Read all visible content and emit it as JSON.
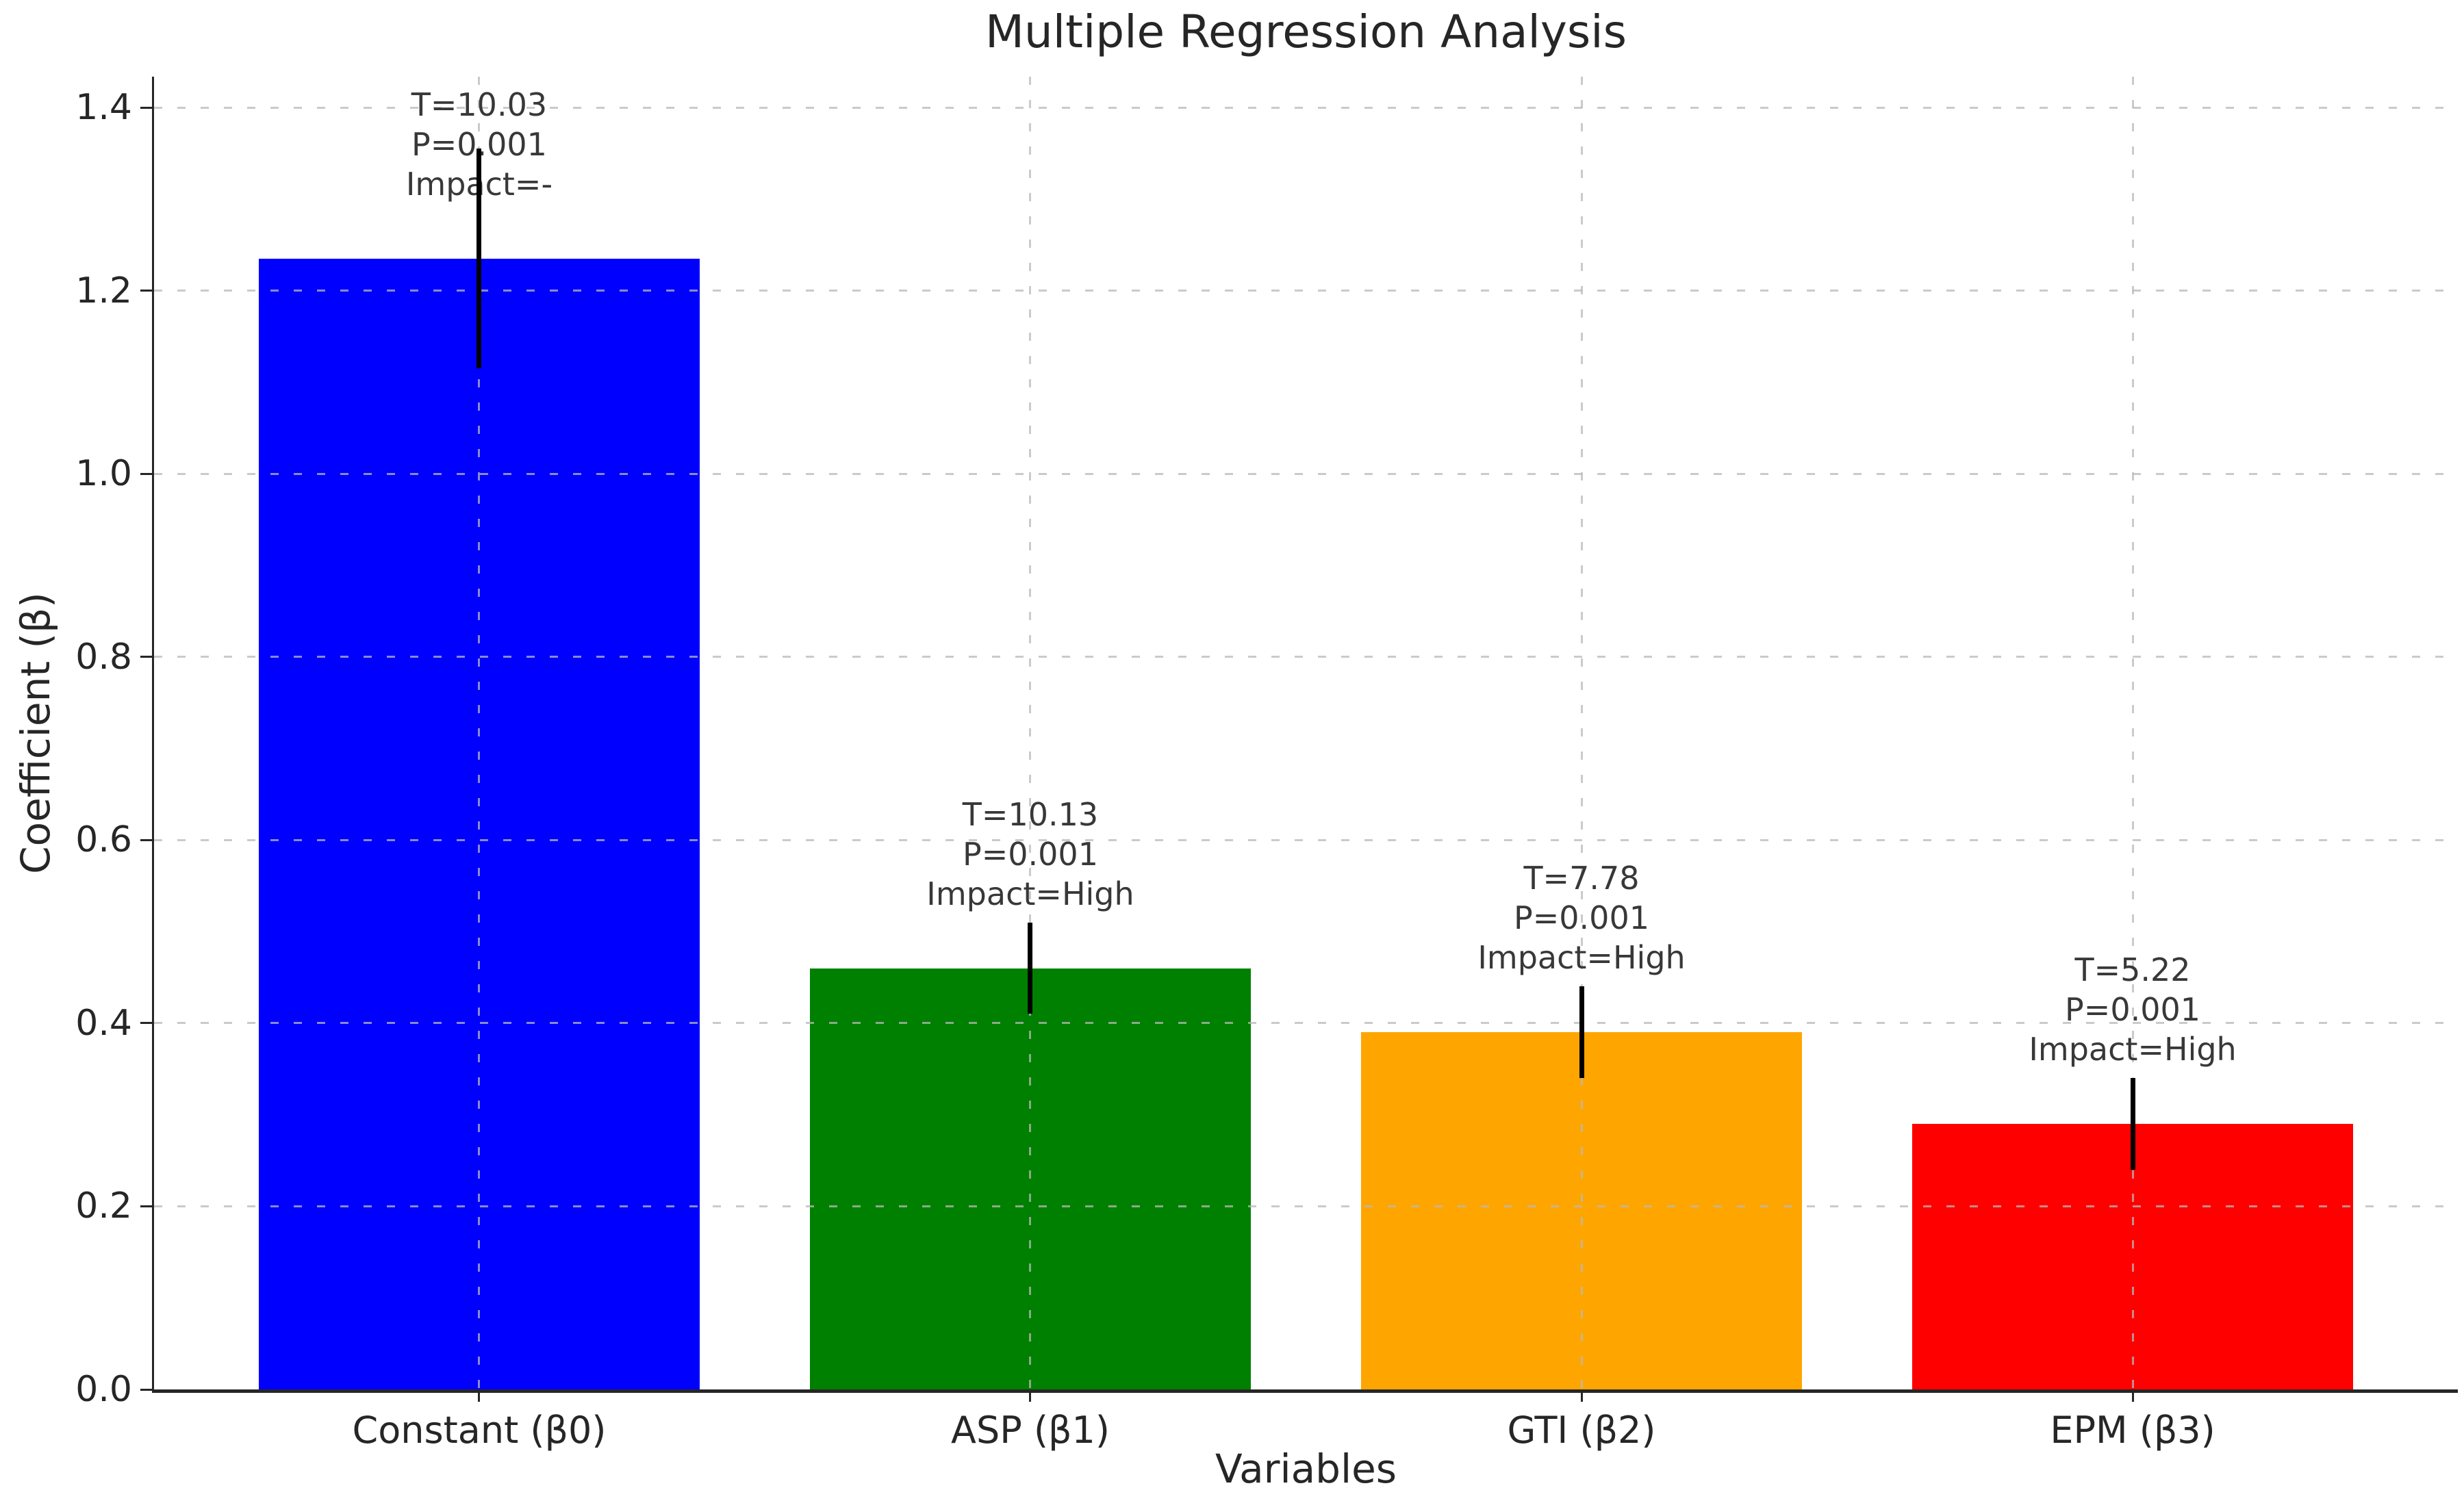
{
  "figure": {
    "background_color": "#ffffff",
    "text_color": "#262626",
    "annotation_color": "#383838",
    "spine_color": "#262626",
    "error_bar_color": "#000000",
    "grid_color": "#b9b9b9"
  },
  "chart_data": {
    "type": "bar",
    "title": "Multiple Regression Analysis",
    "xlabel": "Variables",
    "ylabel": "Coefficient (β)",
    "categories": [
      "Constant (β0)",
      "ASP (β1)",
      "GTI (β2)",
      "EPM (β3)"
    ],
    "values": [
      1.235,
      0.46,
      0.39,
      0.29
    ],
    "errors": [
      0.12,
      0.05,
      0.05,
      0.05
    ],
    "bar_colors": [
      "#0000ff",
      "#008000",
      "#ffa500",
      "#ff0000"
    ],
    "annotations": [
      {
        "lines": [
          "T=10.03",
          "P=0.001",
          "Impact=-"
        ]
      },
      {
        "lines": [
          "T=10.13",
          "P=0.001",
          "Impact=High"
        ]
      },
      {
        "lines": [
          "T=7.78",
          "P=0.001",
          "Impact=High"
        ]
      },
      {
        "lines": [
          "T=5.22",
          "P=0.001",
          "Impact=High"
        ]
      }
    ],
    "ylim": [
      0.0,
      1.4
    ],
    "yticks": [
      0.0,
      0.2,
      0.4,
      0.6,
      0.8,
      1.0,
      1.2,
      1.4
    ],
    "ytick_labels": [
      "0.0",
      "0.2",
      "0.4",
      "0.6",
      "0.8",
      "1.0",
      "1.2",
      "1.4"
    ],
    "grid": {
      "show": true,
      "style": "dashed",
      "horizontal": true,
      "vertical": true
    },
    "legend": null
  }
}
